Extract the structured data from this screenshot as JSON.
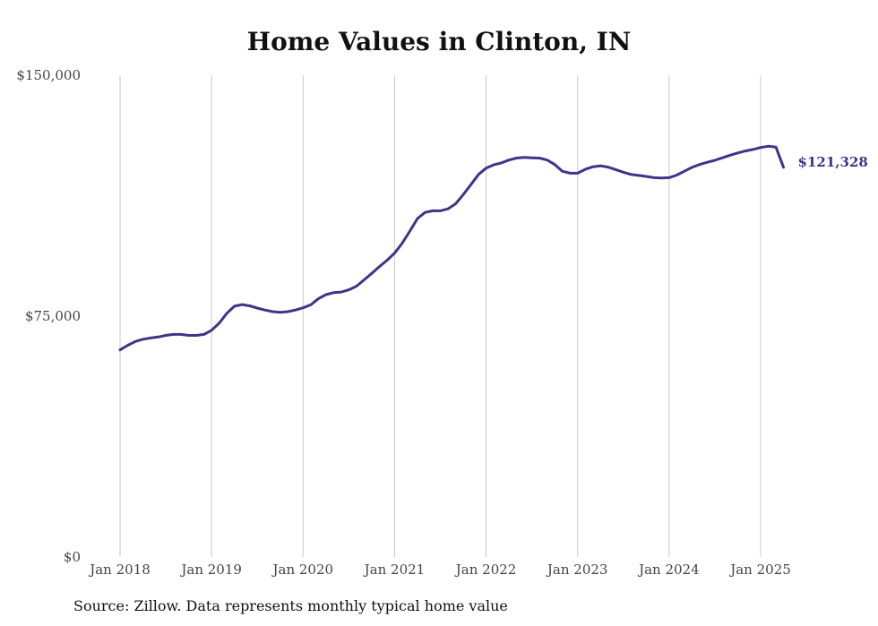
{
  "chart_data": {
    "type": "line",
    "title": "Home Values in Clinton, IN",
    "source": "Source: Zillow. Data represents monthly typical home value",
    "xlabel": "",
    "ylabel": "",
    "ylim": [
      0,
      150000
    ],
    "y_ticks": [
      {
        "value": 0,
        "label": "$0"
      },
      {
        "value": 75000,
        "label": "$75,000"
      },
      {
        "value": 150000,
        "label": "$150,000"
      }
    ],
    "x_ticks": [
      {
        "value": 2018,
        "label": "Jan 2018"
      },
      {
        "value": 2019,
        "label": "Jan 2019"
      },
      {
        "value": 2020,
        "label": "Jan 2020"
      },
      {
        "value": 2021,
        "label": "Jan 2021"
      },
      {
        "value": 2022,
        "label": "Jan 2022"
      },
      {
        "value": 2023,
        "label": "Jan 2023"
      },
      {
        "value": 2024,
        "label": "Jan 2024"
      },
      {
        "value": 2025,
        "label": "Jan 2025"
      }
    ],
    "xlim": [
      2018,
      2025.25
    ],
    "grid": "vertical",
    "line_color": "#3d3589",
    "end_label": "$121,328",
    "series": [
      {
        "x": [
          2018.0,
          2018.083,
          2018.167,
          2018.25,
          2018.333,
          2018.417,
          2018.5,
          2018.583,
          2018.667,
          2018.75,
          2018.833,
          2018.917,
          2019.0,
          2019.083,
          2019.167,
          2019.25,
          2019.333,
          2019.417,
          2019.5,
          2019.583,
          2019.667,
          2019.75,
          2019.833,
          2019.917,
          2020.0,
          2020.083,
          2020.167,
          2020.25,
          2020.333,
          2020.417,
          2020.5,
          2020.583,
          2020.667,
          2020.75,
          2020.833,
          2020.917,
          2021.0,
          2021.083,
          2021.167,
          2021.25,
          2021.333,
          2021.417,
          2021.5,
          2021.583,
          2021.667,
          2021.75,
          2021.833,
          2021.917,
          2022.0,
          2022.083,
          2022.167,
          2022.25,
          2022.333,
          2022.417,
          2022.5,
          2022.583,
          2022.667,
          2022.75,
          2022.833,
          2022.917,
          2023.0,
          2023.083,
          2023.167,
          2023.25,
          2023.333,
          2023.417,
          2023.5,
          2023.583,
          2023.667,
          2023.75,
          2023.833,
          2023.917,
          2024.0,
          2024.083,
          2024.167,
          2024.25,
          2024.333,
          2024.417,
          2024.5,
          2024.583,
          2024.667,
          2024.75,
          2024.833,
          2024.917,
          2025.0,
          2025.083,
          2025.167,
          2025.25
        ],
        "values": [
          64500,
          65900,
          67100,
          67800,
          68200,
          68500,
          69000,
          69300,
          69300,
          69000,
          69000,
          69300,
          70600,
          72800,
          75900,
          78100,
          78600,
          78200,
          77500,
          76900,
          76400,
          76200,
          76400,
          76900,
          77600,
          78500,
          80400,
          81700,
          82300,
          82500,
          83200,
          84300,
          86300,
          88300,
          90400,
          92400,
          94600,
          97700,
          101500,
          105400,
          107300,
          107800,
          107800,
          108400,
          110000,
          112800,
          115900,
          119100,
          121100,
          122100,
          122700,
          123600,
          124200,
          124400,
          124300,
          124200,
          123600,
          122200,
          120100,
          119500,
          119500,
          120700,
          121500,
          121800,
          121400,
          120600,
          119800,
          119100,
          118800,
          118500,
          118100,
          118000,
          118100,
          118900,
          120100,
          121300,
          122200,
          122900,
          123500,
          124300,
          125100,
          125800,
          126400,
          126900,
          127500,
          127900,
          127600,
          121328
        ]
      }
    ]
  }
}
